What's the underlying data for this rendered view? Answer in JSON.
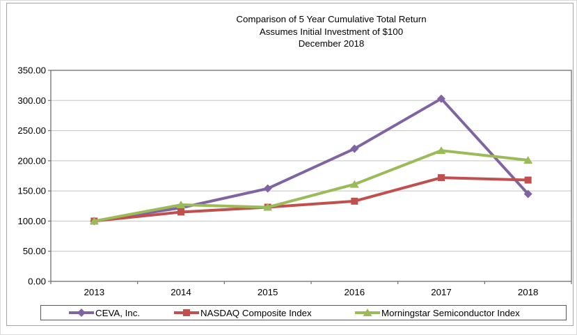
{
  "chart_data": {
    "type": "line",
    "title_lines": [
      "Comparison of 5 Year Cumulative Total Return",
      "Assumes Initial Investment of $100",
      "December 2018"
    ],
    "categories": [
      "2013",
      "2014",
      "2015",
      "2016",
      "2017",
      "2018"
    ],
    "series": [
      {
        "name": "CEVA, Inc.",
        "color": "#8064A2",
        "marker": "diamond",
        "values": [
          100,
          122,
          154,
          220,
          303,
          145
        ]
      },
      {
        "name": "NASDAQ Composite Index",
        "color": "#C0504D",
        "marker": "square",
        "values": [
          100,
          115,
          123,
          133,
          172,
          168
        ]
      },
      {
        "name": "Morningstar Semiconductor Index",
        "color": "#9BBB59",
        "marker": "triangle",
        "values": [
          100,
          127,
          123,
          161,
          217,
          201
        ]
      }
    ],
    "y_axis": {
      "min": 0,
      "max": 350,
      "step": 50,
      "tick_decimals": 2,
      "tick_labels": [
        "0.00",
        "50.00",
        "100.00",
        "150.00",
        "200.00",
        "250.00",
        "300.00",
        "350.00"
      ]
    },
    "x_axis": {
      "tick_labels": [
        "2013",
        "2014",
        "2015",
        "2016",
        "2017",
        "2018"
      ]
    },
    "grid": true,
    "legend_position": "bottom",
    "legend_labels": [
      "CEVA, Inc.",
      "NASDAQ Composite Index",
      "Morningstar Semiconductor Index"
    ]
  }
}
